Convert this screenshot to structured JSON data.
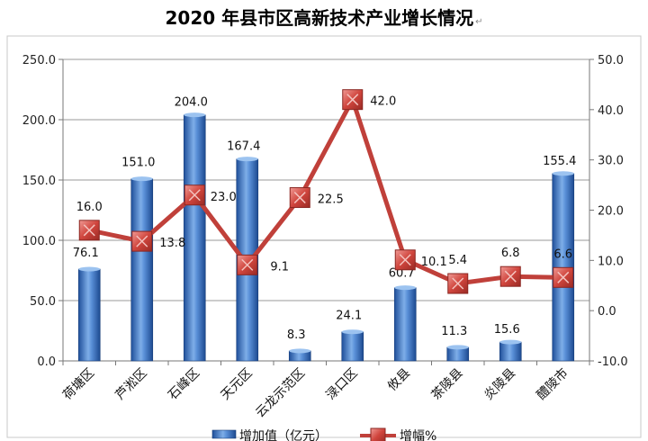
{
  "title": "2020 年县市区高新技术产业增长情况",
  "title_mark": "↵",
  "chart_data": {
    "type": "bar",
    "categories": [
      "荷塘区",
      "芦淞区",
      "石峰区",
      "天元区",
      "云龙示范区",
      "渌口区",
      "攸县",
      "茶陵县",
      "炎陵县",
      "醴陵市"
    ],
    "series": [
      {
        "name": "增加值（亿元）",
        "type": "bar",
        "axis": "left",
        "values": [
          76.1,
          151.0,
          204.0,
          167.4,
          8.3,
          24.1,
          60.7,
          11.3,
          15.6,
          155.4
        ],
        "labels": [
          "76.1",
          "151.0",
          "204.0",
          "167.4",
          "8.3",
          "24.1",
          "60.7",
          "11.3",
          "15.6",
          "155.4"
        ],
        "color": "#3f78c5"
      },
      {
        "name": "增幅%",
        "type": "line",
        "axis": "right",
        "values": [
          16.0,
          13.8,
          23.0,
          9.1,
          22.5,
          42.0,
          10.1,
          5.4,
          6.8,
          6.6
        ],
        "labels": [
          "16.0",
          "13.8",
          "23.0",
          "9.1",
          "22.5",
          "42.0",
          "10.1",
          "5.4",
          "6.8",
          "6.6"
        ],
        "color": "#c0403a"
      }
    ],
    "y_left": {
      "range": [
        0,
        250
      ],
      "ticks": [
        "0.0",
        "50.0",
        "100.0",
        "150.0",
        "200.0",
        "250.0"
      ]
    },
    "y_right": {
      "range": [
        -10,
        50
      ],
      "ticks": [
        "-10.0",
        "0.0",
        "10.0",
        "20.0",
        "30.0",
        "40.0",
        "50.0"
      ]
    },
    "grid": "horizontal",
    "legend_position": "bottom"
  }
}
